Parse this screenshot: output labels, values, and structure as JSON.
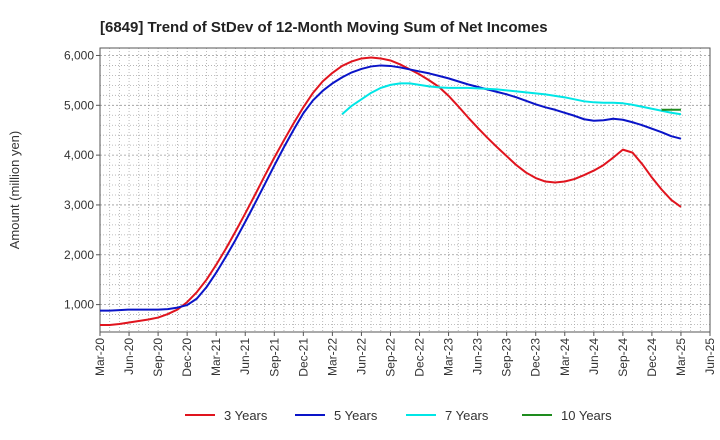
{
  "chart_data": {
    "type": "line",
    "title": "[6849]  Trend of StDev of 12-Month Moving Sum of Net Incomes",
    "ylabel": "Amount (million yen)",
    "xlabel": "",
    "ylim": [
      450,
      6150
    ],
    "yticks": [
      1000,
      2000,
      3000,
      4000,
      5000,
      6000
    ],
    "ytick_labels": [
      "1,000",
      "2,000",
      "3,000",
      "4,000",
      "5,000",
      "6,000"
    ],
    "xtick_labels": [
      "Mar-20",
      "Jun-20",
      "Sep-20",
      "Dec-20",
      "Mar-21",
      "Jun-21",
      "Sep-21",
      "Dec-21",
      "Mar-22",
      "Jun-22",
      "Sep-22",
      "Dec-22",
      "Mar-23",
      "Jun-23",
      "Sep-23",
      "Dec-23",
      "Mar-24",
      "Jun-24",
      "Sep-24",
      "Dec-24",
      "Mar-25",
      "Jun-25"
    ],
    "grid": true,
    "legend_position": "bottom",
    "series": [
      {
        "name": "3 Years",
        "color": "#e0141e",
        "values": [
          590,
          590,
          610,
          640,
          670,
          700,
          740,
          810,
          900,
          1050,
          1250,
          1500,
          1800,
          2120,
          2470,
          2830,
          3200,
          3580,
          3950,
          4300,
          4640,
          4960,
          5250,
          5480,
          5650,
          5790,
          5880,
          5940,
          5960,
          5940,
          5900,
          5820,
          5720,
          5620,
          5500,
          5370,
          5190,
          4980,
          4760,
          4550,
          4350,
          4160,
          3980,
          3800,
          3650,
          3540,
          3470,
          3450,
          3470,
          3520,
          3600,
          3690,
          3800,
          3950,
          4110,
          4050,
          3820,
          3550,
          3310,
          3100,
          2960
        ]
      },
      {
        "name": "5 Years",
        "color": "#0a14c8",
        "values": [
          880,
          880,
          890,
          900,
          900,
          900,
          900,
          910,
          940,
          990,
          1120,
          1350,
          1640,
          1960,
          2300,
          2660,
          3030,
          3410,
          3790,
          4160,
          4510,
          4840,
          5100,
          5290,
          5440,
          5560,
          5660,
          5730,
          5780,
          5800,
          5790,
          5760,
          5720,
          5680,
          5640,
          5590,
          5540,
          5480,
          5420,
          5370,
          5320,
          5270,
          5220,
          5160,
          5090,
          5020,
          4960,
          4910,
          4850,
          4790,
          4720,
          4690,
          4700,
          4730,
          4710,
          4660,
          4600,
          4530,
          4460,
          4380,
          4330
        ]
      },
      {
        "name": "7 Years",
        "color": "#00e6e6",
        "values": [
          null,
          null,
          null,
          null,
          null,
          null,
          null,
          null,
          null,
          null,
          null,
          null,
          null,
          null,
          null,
          null,
          null,
          null,
          null,
          null,
          null,
          null,
          null,
          null,
          null,
          4820,
          4990,
          5120,
          5250,
          5350,
          5410,
          5440,
          5440,
          5410,
          5380,
          5360,
          5350,
          5350,
          5350,
          5340,
          5330,
          5320,
          5300,
          5280,
          5260,
          5240,
          5220,
          5190,
          5160,
          5120,
          5080,
          5060,
          5050,
          5050,
          5040,
          5010,
          4970,
          4930,
          4890,
          4850,
          4820
        ]
      },
      {
        "name": "10 Years",
        "color": "#1e8c1e",
        "values": [
          null,
          null,
          null,
          null,
          null,
          null,
          null,
          null,
          null,
          null,
          null,
          null,
          null,
          null,
          null,
          null,
          null,
          null,
          null,
          null,
          null,
          null,
          null,
          null,
          null,
          null,
          null,
          null,
          null,
          null,
          null,
          null,
          null,
          null,
          null,
          null,
          null,
          null,
          null,
          null,
          null,
          null,
          null,
          null,
          null,
          null,
          null,
          null,
          null,
          null,
          null,
          null,
          null,
          null,
          null,
          null,
          null,
          null,
          4910,
          4910,
          4910
        ]
      }
    ]
  }
}
